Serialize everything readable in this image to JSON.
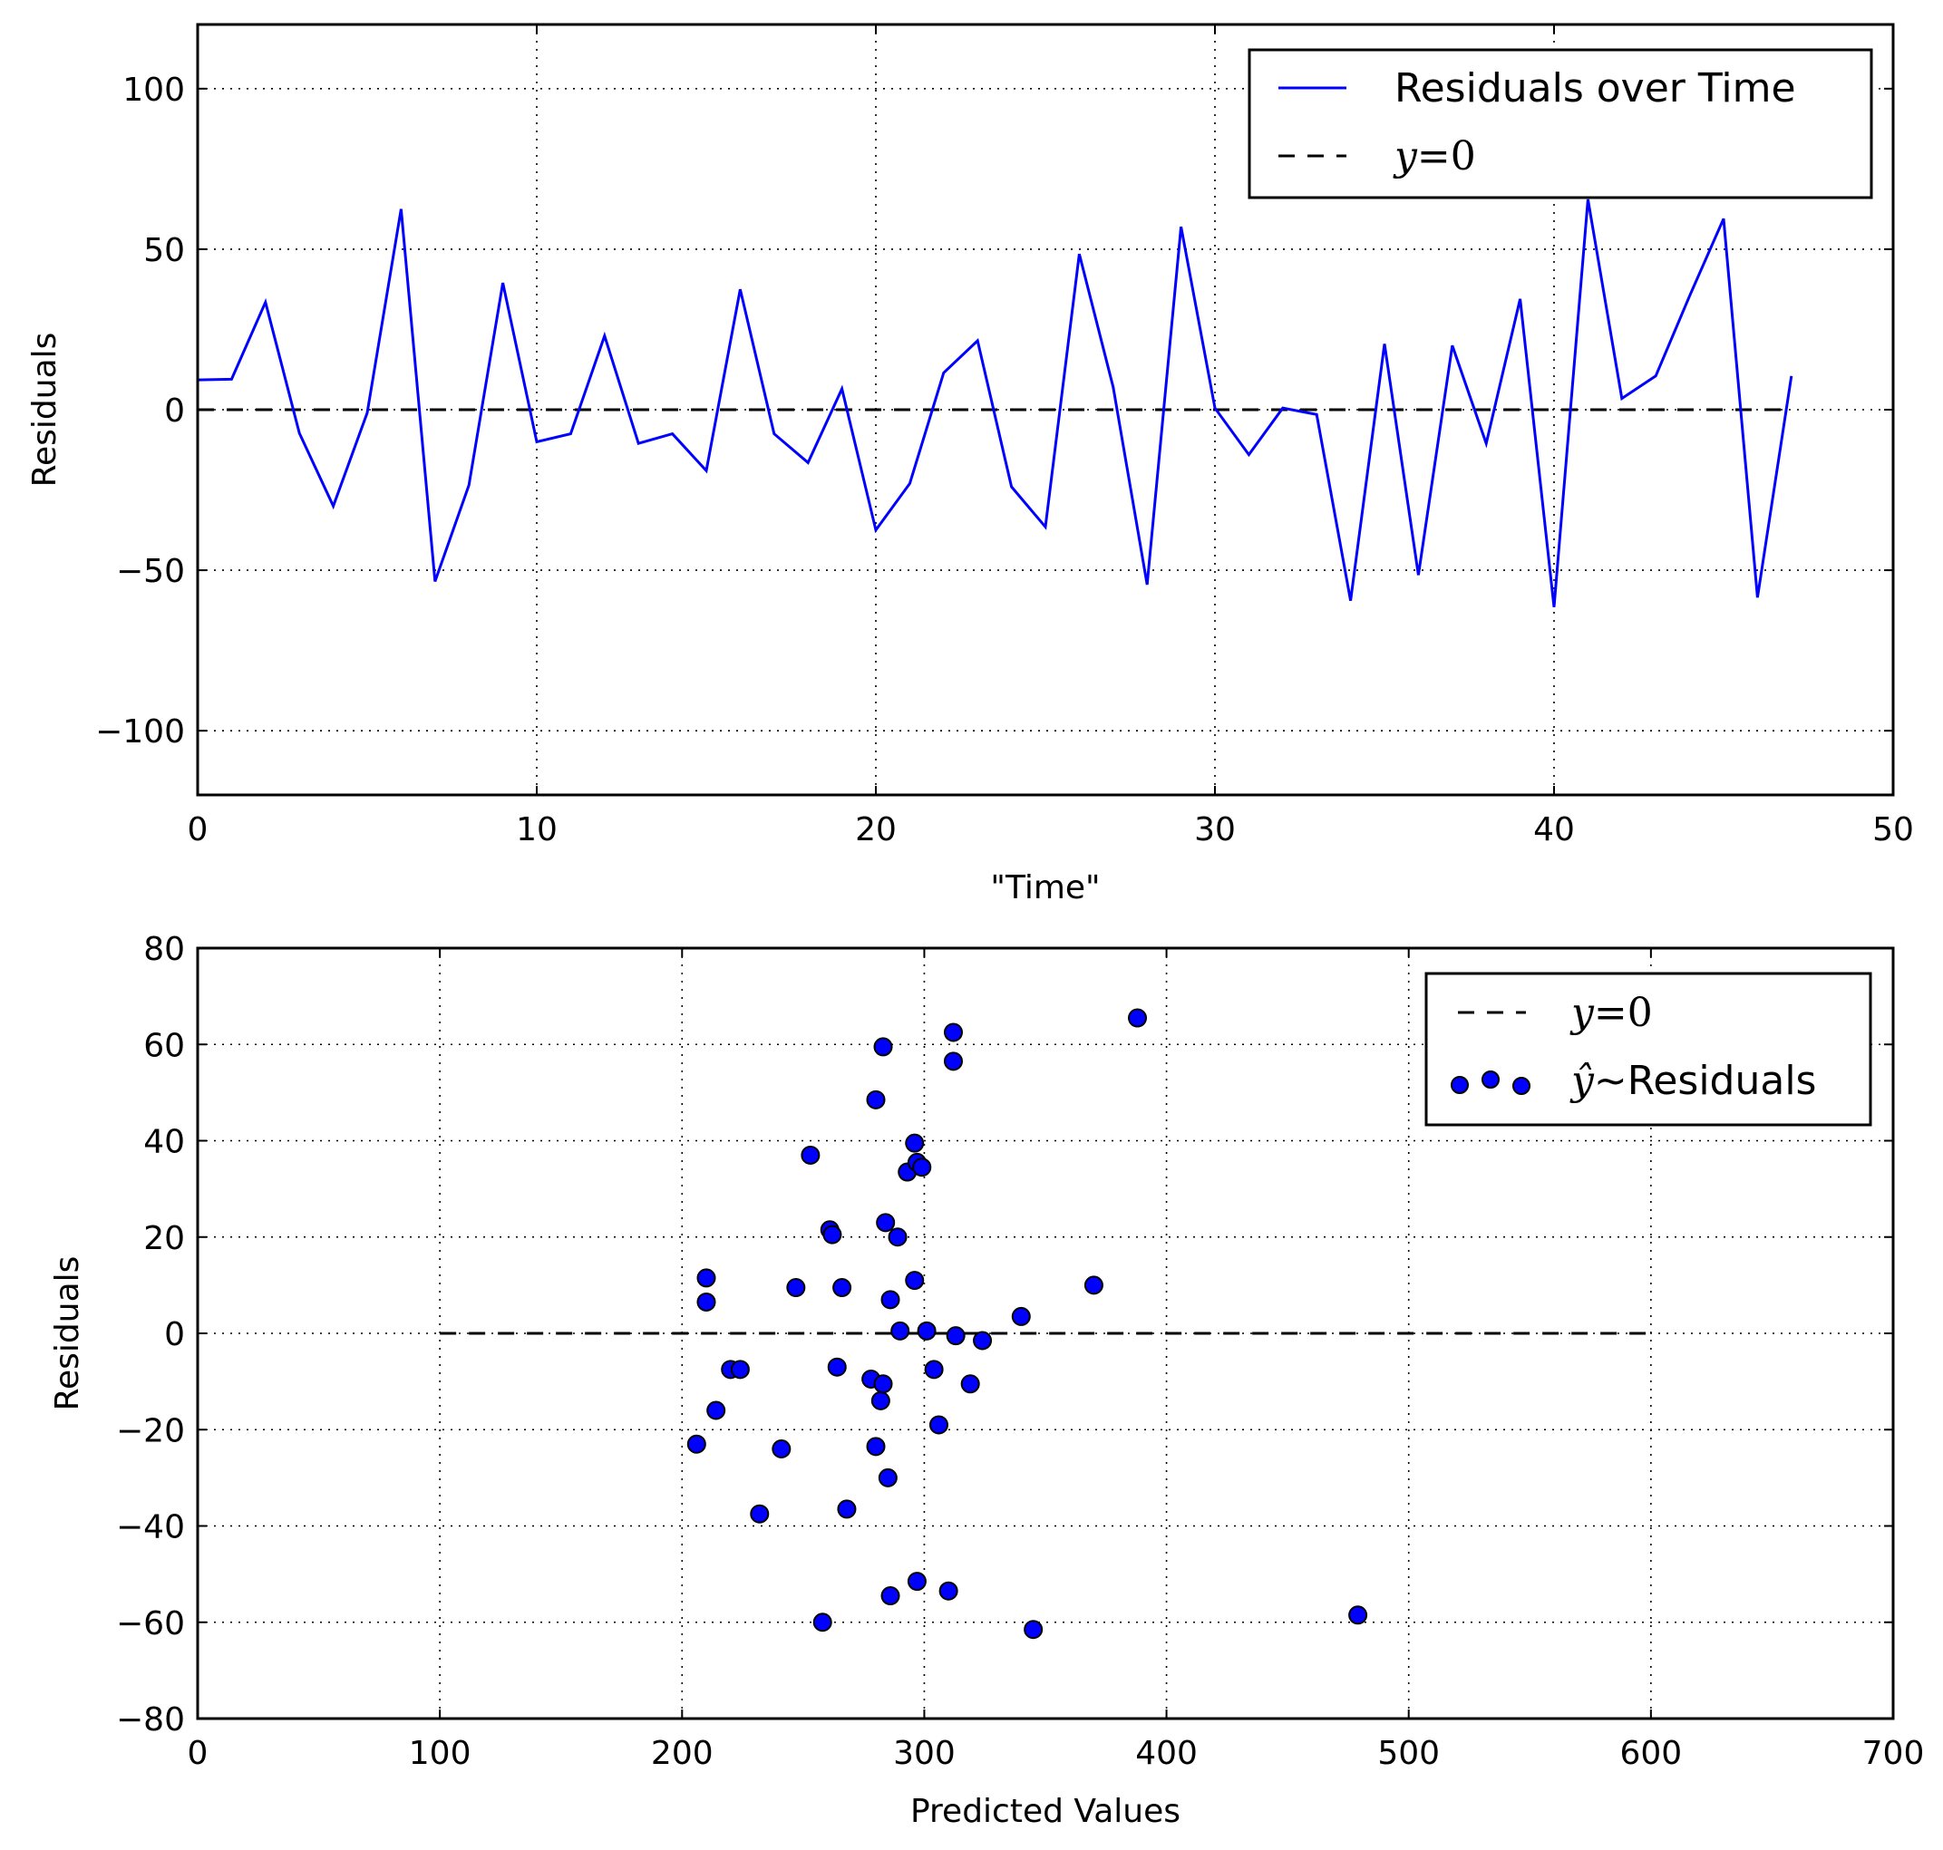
{
  "chart_data": [
    {
      "type": "line",
      "title": "",
      "xlabel": "\"Time\"",
      "ylabel": "Residuals",
      "xlim": [
        0,
        50
      ],
      "ylim": [
        -120,
        120
      ],
      "xticks": [
        0,
        10,
        20,
        30,
        40,
        50
      ],
      "xtick_labels": [
        "0",
        "10",
        "20",
        "30",
        "40",
        "50"
      ],
      "yticks": [
        -100,
        -50,
        0,
        50,
        100
      ],
      "ytick_labels": [
        "−100",
        "−50",
        "0",
        "50",
        "100"
      ],
      "grid": true,
      "legend_position": "top-right",
      "series": [
        {
          "name": "Residuals over Time",
          "color": "#0000ff",
          "style": "solid",
          "x": [
            0,
            1,
            2,
            3,
            4,
            5,
            6,
            7,
            8,
            9,
            10,
            11,
            12,
            13,
            14,
            15,
            16,
            17,
            18,
            19,
            20,
            21,
            22,
            23,
            24,
            25,
            26,
            27,
            28,
            29,
            30,
            31,
            32,
            33,
            34,
            35,
            36,
            37,
            38,
            39,
            40,
            41,
            42,
            43,
            44,
            45,
            46,
            47
          ],
          "values": [
            9.3,
            9.5,
            33.5,
            -7.3,
            -30,
            -1,
            62.5,
            -53.5,
            -23.5,
            39.5,
            -10,
            -7.5,
            23,
            -10.5,
            -7.5,
            -19,
            37.5,
            -7.5,
            -16.5,
            6.5,
            -37.5,
            -23,
            11.5,
            21.5,
            -24,
            -36.5,
            48.5,
            7,
            -54.5,
            57,
            0.5,
            -14,
            0.5,
            -1.5,
            -59.5,
            20.5,
            -51.5,
            20,
            -10.5,
            34.5,
            -61.5,
            65.5,
            3.5,
            10.5,
            35.5,
            59.5,
            -58.5,
            10.5
          ]
        },
        {
          "name": "y=0",
          "legend_italic": "y",
          "legend_rest": "=0",
          "color": "#000000",
          "style": "dashed",
          "x": [
            0,
            47
          ],
          "values": [
            0,
            0
          ]
        }
      ]
    },
    {
      "type": "scatter",
      "title": "",
      "xlabel": "Predicted Values",
      "ylabel": "Residuals",
      "xlim": [
        0,
        700
      ],
      "ylim": [
        -80,
        80
      ],
      "xticks": [
        0,
        100,
        200,
        300,
        400,
        500,
        600,
        700
      ],
      "xtick_labels": [
        "0",
        "100",
        "200",
        "300",
        "400",
        "500",
        "600",
        "700"
      ],
      "yticks": [
        -80,
        -60,
        -40,
        -20,
        0,
        20,
        40,
        60,
        80
      ],
      "ytick_labels": [
        "−80",
        "−60",
        "−40",
        "−20",
        "0",
        "20",
        "40",
        "60",
        "80"
      ],
      "grid": true,
      "legend_position": "top-right",
      "reference_line": {
        "name": "y=0",
        "legend_italic": "y",
        "legend_rest": "=0",
        "color": "#000000",
        "style": "dashed",
        "x": [
          100,
          600
        ],
        "y": [
          0,
          0
        ]
      },
      "series": [
        {
          "name": "ŷ~Residuals",
          "legend_italic": "ŷ",
          "legend_rest": "~Residuals",
          "color": "#0000ff",
          "edge_color": "#000000",
          "points": [
            [
              206,
              -23
            ],
            [
              210,
              11.5
            ],
            [
              210,
              6.5
            ],
            [
              214,
              -16
            ],
            [
              220,
              -7.5
            ],
            [
              224,
              -7.5
            ],
            [
              232,
              -37.5
            ],
            [
              241,
              -24
            ],
            [
              247,
              9.5
            ],
            [
              253,
              37
            ],
            [
              258,
              -60
            ],
            [
              261,
              21.5
            ],
            [
              262,
              20.5
            ],
            [
              264,
              -7
            ],
            [
              266,
              9.5
            ],
            [
              268,
              -36.5
            ],
            [
              278,
              -9.5
            ],
            [
              280,
              48.5
            ],
            [
              280,
              -23.5
            ],
            [
              282,
              -14
            ],
            [
              283,
              -10.5
            ],
            [
              283,
              59.5
            ],
            [
              284,
              23
            ],
            [
              285,
              -30
            ],
            [
              286,
              -54.5
            ],
            [
              286,
              7
            ],
            [
              289,
              20
            ],
            [
              290,
              0.5
            ],
            [
              293,
              33.5
            ],
            [
              296,
              11
            ],
            [
              296,
              39.5
            ],
            [
              297,
              35.5
            ],
            [
              297,
              -51.5
            ],
            [
              299,
              34.5
            ],
            [
              301,
              0.5
            ],
            [
              304,
              -7.5
            ],
            [
              306,
              -19
            ],
            [
              310,
              -53.5
            ],
            [
              312,
              62.5
            ],
            [
              312,
              56.5
            ],
            [
              313,
              -0.5
            ],
            [
              319,
              -10.5
            ],
            [
              324,
              -1.5
            ],
            [
              340,
              3.5
            ],
            [
              345,
              -61.5
            ],
            [
              370,
              10
            ],
            [
              388,
              65.5
            ],
            [
              479,
              -58.5
            ]
          ]
        }
      ]
    }
  ]
}
